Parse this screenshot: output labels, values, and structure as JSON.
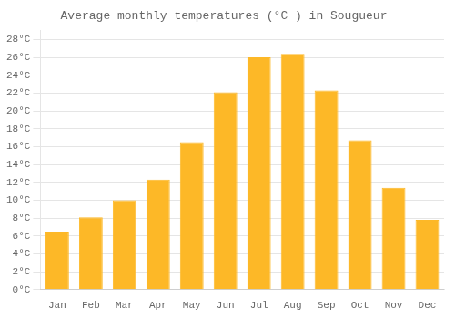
{
  "chart_data": {
    "type": "bar",
    "title": "Average monthly temperatures (°C ) in Sougueur",
    "categories": [
      "Jan",
      "Feb",
      "Mar",
      "Apr",
      "May",
      "Jun",
      "Jul",
      "Aug",
      "Sep",
      "Oct",
      "Nov",
      "Dec"
    ],
    "values": [
      6.5,
      8.1,
      10.0,
      12.3,
      16.5,
      22.1,
      26.0,
      26.4,
      22.3,
      16.7,
      11.4,
      7.8
    ],
    "color": "#FDB827",
    "ylim": [
      0,
      29
    ],
    "yticks": [
      {
        "value": 0,
        "label": "0°C"
      },
      {
        "value": 2,
        "label": "2°C"
      },
      {
        "value": 4,
        "label": "4°C"
      },
      {
        "value": 6,
        "label": "6°C"
      },
      {
        "value": 8,
        "label": "8°C"
      },
      {
        "value": 10,
        "label": "10°C"
      },
      {
        "value": 12,
        "label": "12°C"
      },
      {
        "value": 14,
        "label": "14°C"
      },
      {
        "value": 16,
        "label": "16°C"
      },
      {
        "value": 18,
        "label": "18°C"
      },
      {
        "value": 20,
        "label": "20°C"
      },
      {
        "value": 22,
        "label": "22°C"
      },
      {
        "value": 24,
        "label": "24°C"
      },
      {
        "value": 26,
        "label": "26°C"
      },
      {
        "value": 28,
        "label": "28°C"
      }
    ],
    "grid": true
  }
}
